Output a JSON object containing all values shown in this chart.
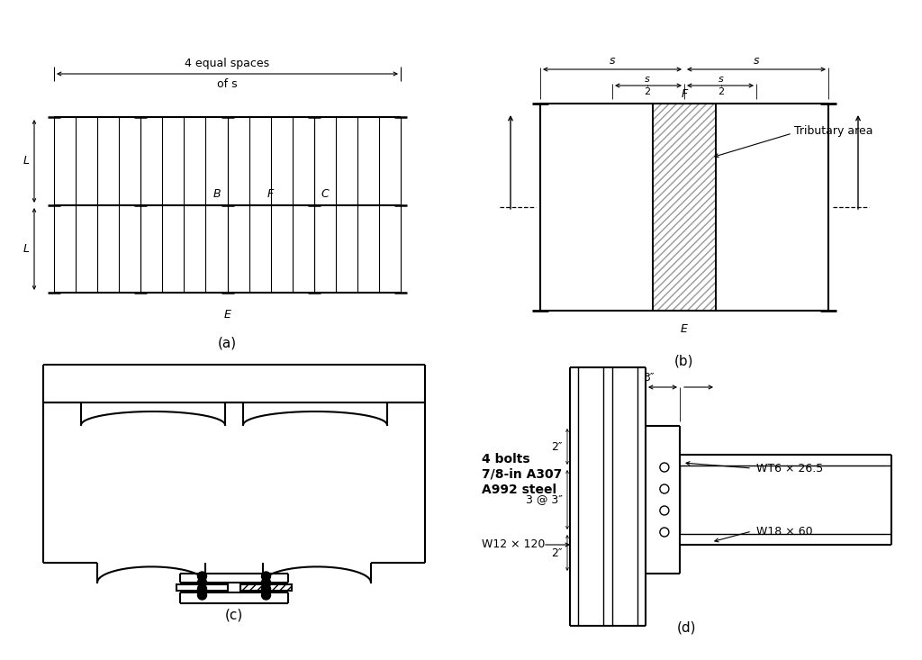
{
  "bg_color": "#ffffff",
  "line_color": "#000000",
  "label_a": "(a)",
  "label_b": "(b)",
  "label_c": "(c)",
  "label_d": "(d)",
  "text_4equal": "4 equal spaces",
  "text_ofs": "of s",
  "text_L1": "L",
  "text_L2": "L",
  "text_B": "B",
  "text_F_a": "F",
  "text_C": "C",
  "text_E_a": "E",
  "text_s1": "s",
  "text_s2": "s",
  "text_F_b": "F",
  "text_E_b": "E",
  "text_tributary": "Tributary area",
  "text_bolts": "4 bolts",
  "text_bolt_size": "7/8-in A307",
  "text_steel": "A992 steel",
  "text_w12": "W12 × 120",
  "text_wt6": "WT6 × 26.5",
  "text_w18": "W18 × 60",
  "text_3in": "3″",
  "text_2in_top": "2″",
  "text_3at3": "3 @ 3″",
  "text_2in_bot": "2″",
  "font_size": 9,
  "font_size_label": 11
}
